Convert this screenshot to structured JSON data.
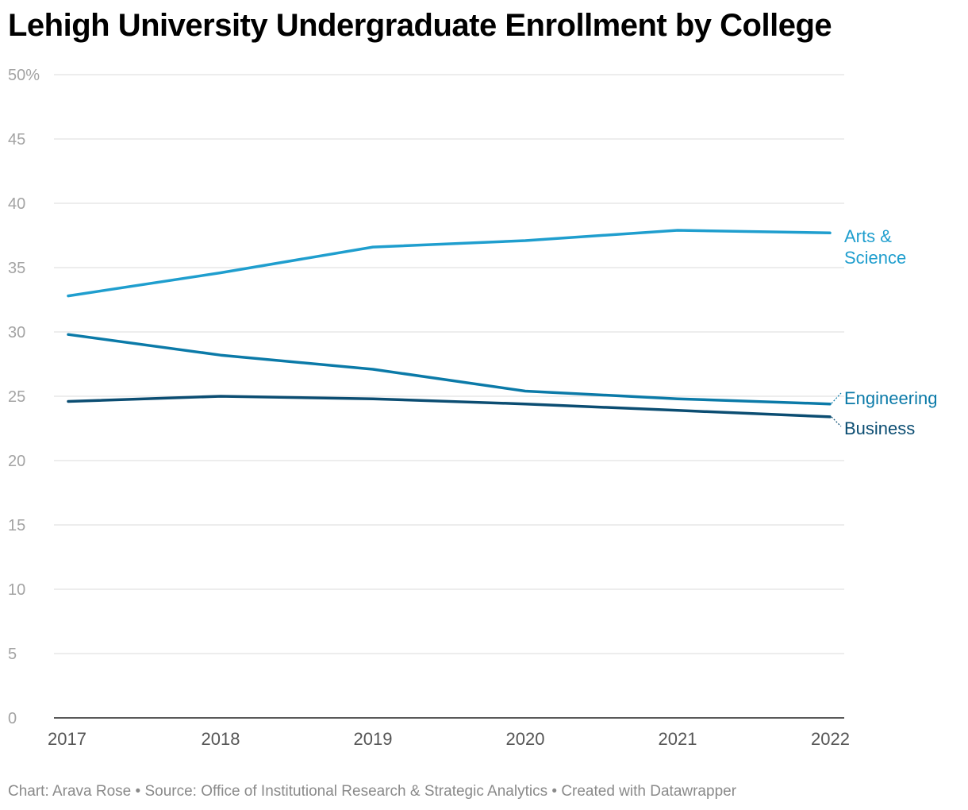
{
  "title": "Lehigh University Undergraduate Enrollment by College",
  "footer": {
    "chart_by": "Chart: Arava Rose",
    "source": "Source: Office of Institutional Research & Strategic Analytics",
    "created_with": "Created with Datawrapper",
    "separator": " • "
  },
  "chart_data": {
    "type": "line",
    "title": "Lehigh University Undergraduate Enrollment by College",
    "xlabel": "",
    "ylabel": "",
    "x": [
      "2017",
      "2018",
      "2019",
      "2020",
      "2021",
      "2022"
    ],
    "ylim": [
      0,
      50
    ],
    "yticks": [
      0,
      5,
      10,
      15,
      20,
      25,
      30,
      35,
      40,
      45,
      50
    ],
    "ytick_labels": [
      "0",
      "5",
      "10",
      "15",
      "20",
      "25",
      "30",
      "35",
      "40",
      "45",
      "50%"
    ],
    "grid": true,
    "legend": "direct labels at line ends (right)",
    "series": [
      {
        "name": "Arts & Science",
        "label_lines": [
          "Arts &",
          "Science"
        ],
        "color": "#1f9ece",
        "values": [
          32.8,
          34.6,
          36.6,
          37.1,
          37.9,
          37.7
        ]
      },
      {
        "name": "Engineering",
        "label_lines": [
          "Engineering"
        ],
        "color": "#0b7aa8",
        "values": [
          29.8,
          28.2,
          27.1,
          25.4,
          24.8,
          24.4
        ]
      },
      {
        "name": "Business",
        "label_lines": [
          "Business"
        ],
        "color": "#0b4d72",
        "values": [
          24.6,
          25.0,
          24.8,
          24.4,
          23.9,
          23.4
        ]
      }
    ]
  }
}
